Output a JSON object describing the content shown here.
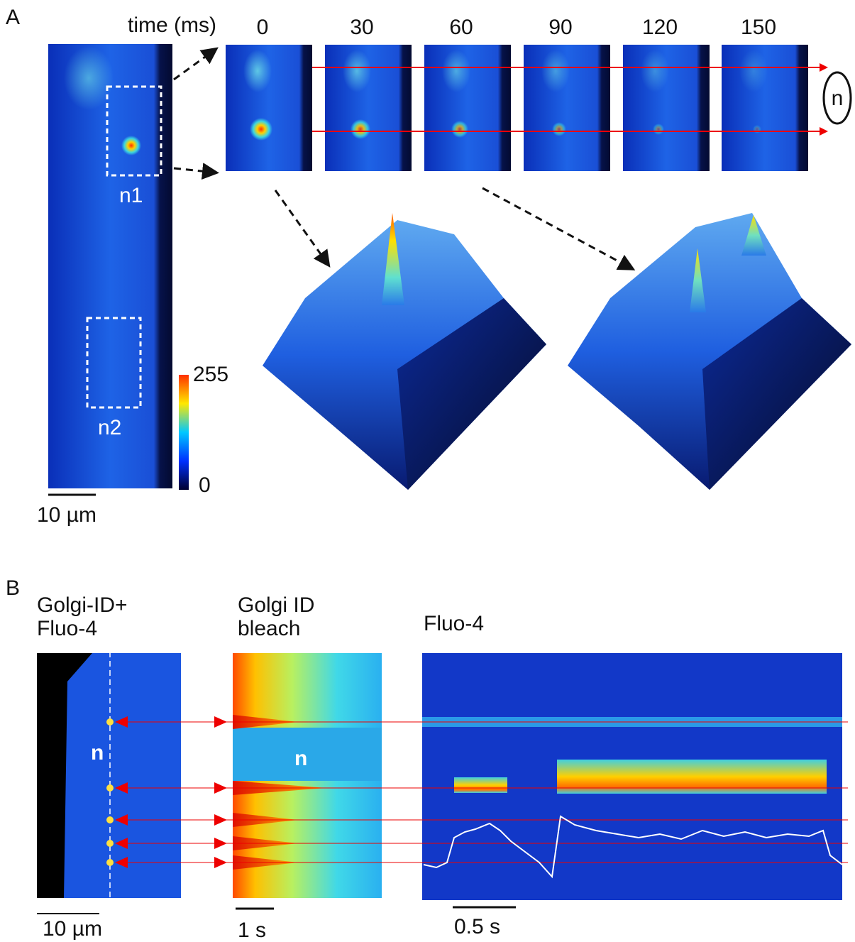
{
  "panel_a": {
    "label": "A",
    "time_label": "time (ms)",
    "time_points": [
      0,
      30,
      60,
      90,
      120,
      150
    ],
    "frame_marker": "n",
    "regions": [
      "n1",
      "n2"
    ],
    "colorbar": {
      "max": 255,
      "min": 0
    },
    "scale_bar": "10 µm"
  },
  "panel_b": {
    "label": "B",
    "left_title": [
      "Golgi-ID+",
      "Fluo-4"
    ],
    "middle_title": [
      "Golgi ID",
      "bleach"
    ],
    "right_title": "Fluo-4",
    "left_marker": "n",
    "middle_marker": "n",
    "scale_bars": [
      "10 µm",
      "1 s",
      "0.5 s"
    ]
  }
}
